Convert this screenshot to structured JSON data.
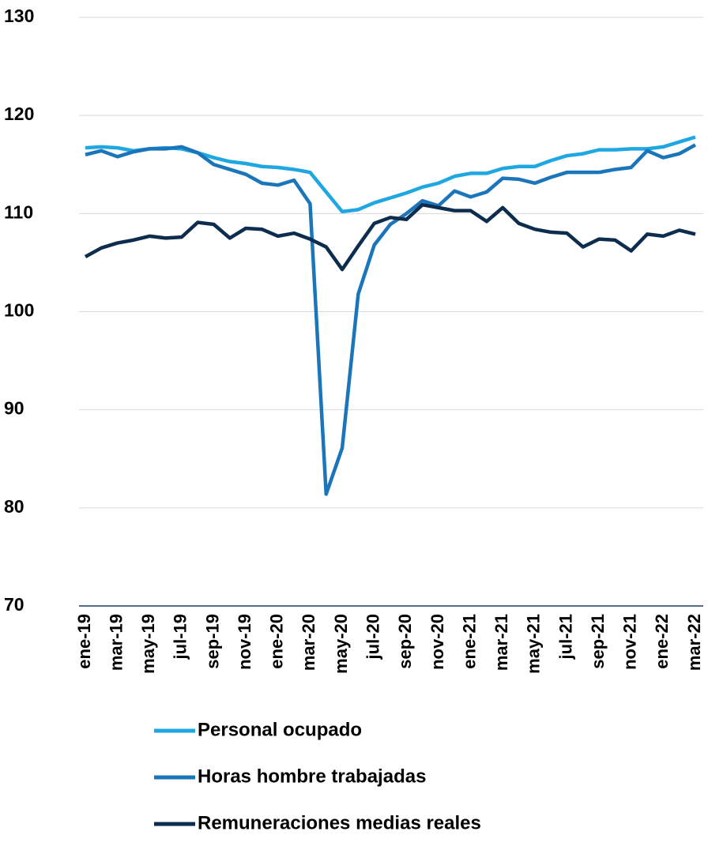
{
  "chart_data": {
    "type": "line",
    "categories": [
      "ene-19",
      null,
      "mar-19",
      null,
      "may-19",
      null,
      "jul-19",
      null,
      "sep-19",
      null,
      "nov-19",
      null,
      "ene-20",
      null,
      "mar-20",
      null,
      "may-20",
      null,
      "jul-20",
      null,
      "sep-20",
      null,
      "nov-20",
      null,
      "ene-21",
      null,
      "mar-21",
      null,
      "may-21",
      null,
      "jul-21",
      null,
      "sep-21",
      null,
      "nov-21",
      null,
      "ene-22",
      null,
      "mar-22"
    ],
    "series": [
      {
        "name": "Personal ocupado",
        "color": "#1ea7e1",
        "values": [
          116.7,
          116.8,
          116.7,
          116.4,
          116.6,
          116.7,
          116.6,
          116.2,
          115.7,
          115.3,
          115.1,
          114.8,
          114.7,
          114.5,
          114.2,
          112.2,
          110.2,
          110.4,
          111.1,
          111.6,
          112.1,
          112.7,
          113.1,
          113.8,
          114.1,
          114.1,
          114.6,
          114.8,
          114.8,
          115.4,
          115.9,
          116.1,
          116.5,
          116.5,
          116.6,
          116.6,
          116.8,
          117.3,
          117.8
        ]
      },
      {
        "name": "Horas hombre trabajadas",
        "color": "#1a75bb",
        "values": [
          116.0,
          116.4,
          115.8,
          116.3,
          116.6,
          116.6,
          116.8,
          116.2,
          115.0,
          114.5,
          114.0,
          113.1,
          112.9,
          113.4,
          111.0,
          81.4,
          86.1,
          101.8,
          106.8,
          108.9,
          110.0,
          111.3,
          110.8,
          112.3,
          111.7,
          112.2,
          113.6,
          113.5,
          113.1,
          113.7,
          114.2,
          114.2,
          114.2,
          114.5,
          114.7,
          116.4,
          115.7,
          116.1,
          117.0
        ]
      },
      {
        "name": "Remuneraciones medias reales",
        "color": "#0d2d4f",
        "values": [
          105.6,
          106.5,
          107.0,
          107.3,
          107.7,
          107.5,
          107.6,
          109.1,
          108.9,
          107.5,
          108.5,
          108.4,
          107.7,
          108.0,
          107.4,
          106.6,
          104.3,
          106.7,
          109.0,
          109.6,
          109.4,
          110.9,
          110.6,
          110.3,
          110.3,
          109.2,
          110.6,
          109.0,
          108.4,
          108.1,
          108.0,
          106.6,
          107.4,
          107.3,
          106.2,
          107.9,
          107.7,
          108.3,
          107.9
        ]
      }
    ],
    "ylim": [
      70,
      130
    ],
    "yticks": [
      70,
      80,
      90,
      100,
      110,
      120,
      130
    ],
    "grid": true
  }
}
